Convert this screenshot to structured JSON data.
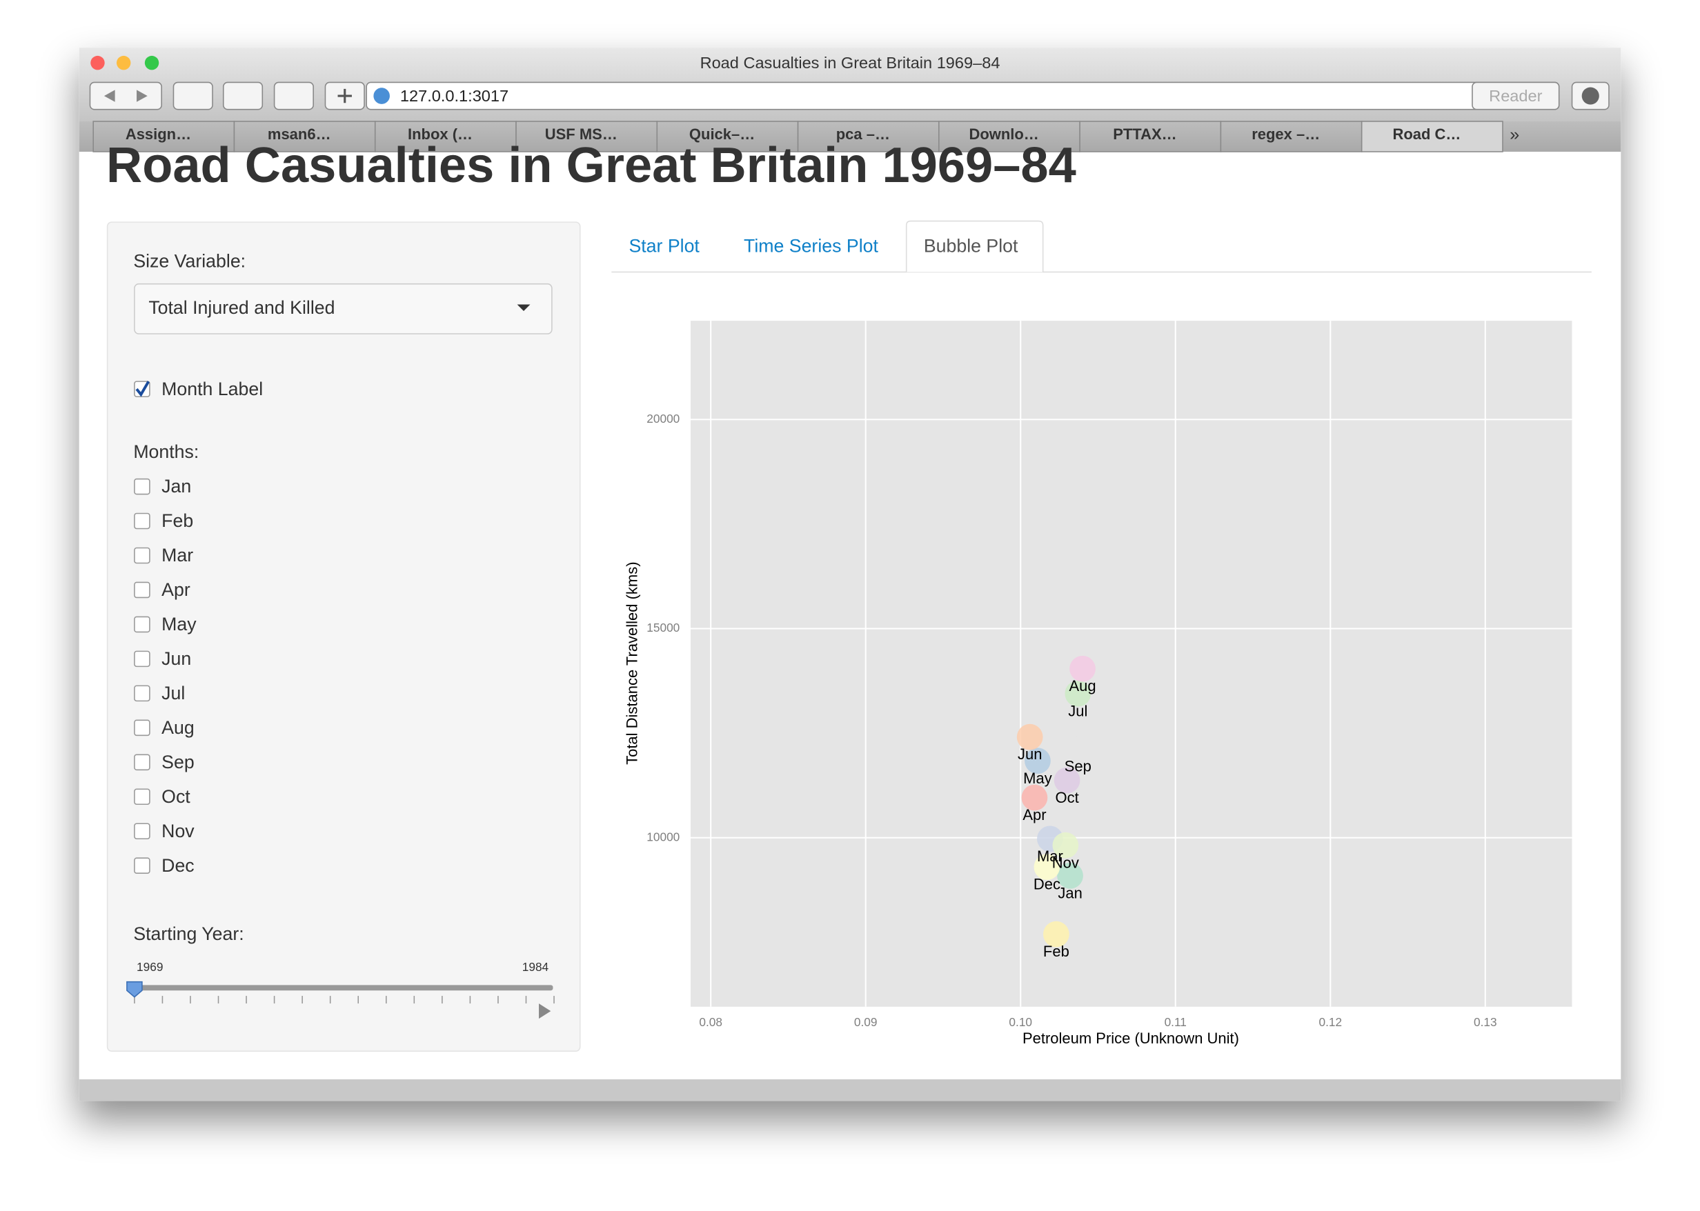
{
  "window": {
    "title": "Road Casualties in Great Britain 1969–84",
    "url": "127.0.0.1:3017",
    "reader": "Reader",
    "tabs": [
      "Assign…",
      "msan6…",
      "Inbox (…",
      "USF MS…",
      "Quick–…",
      "pca –…",
      "Downlo…",
      "PTTAX…",
      "regex –…",
      "Road C…"
    ]
  },
  "page": {
    "title": "Road Casualties in Great Britain 1969–84",
    "sidebar": {
      "size_label": "Size Variable:",
      "size_value": "Total Injured and Killed",
      "month_label_checkbox": "Month Label",
      "months_label": "Months:",
      "months": [
        "Jan",
        "Feb",
        "Mar",
        "Apr",
        "May",
        "Jun",
        "Jul",
        "Aug",
        "Sep",
        "Oct",
        "Nov",
        "Dec"
      ],
      "year_label": "Starting Year:",
      "year_min": 1969,
      "year_max": 1984
    },
    "tabs": [
      "Star Plot",
      "Time Series Plot",
      "Bubble Plot"
    ]
  },
  "chart_data": {
    "type": "scatter",
    "xlabel": "Petroleum Price (Unknown Unit)",
    "ylabel": "Total Distance Travelled (kms)",
    "categories": [
      "Jan",
      "Feb",
      "Mar",
      "Apr",
      "May",
      "Jun",
      "Jul",
      "Aug",
      "Sep",
      "Oct",
      "Nov",
      "Dec"
    ],
    "x": [
      0.1032,
      0.1023,
      0.1019,
      0.1009,
      0.1011,
      0.1006,
      0.1037,
      0.104,
      0.1037,
      0.103,
      0.1029,
      0.1017
    ],
    "y": [
      9093,
      7694,
      9974,
      10959,
      11839,
      12409,
      13446,
      14041,
      12124,
      11373,
      9819,
      9301
    ],
    "colors": [
      "#b3e2cd",
      "#fff2ae",
      "#cbd5e8",
      "#fbb4ae",
      "#b3cde3",
      "#fdcdac",
      "#ccebc5",
      "#f4cae4",
      "#e5e5e5",
      "#decbe4",
      "#e6f5c9",
      "#ffffcc"
    ],
    "xlim": [
      0.0787,
      0.1356
    ],
    "ylim": [
      5960,
      22360
    ],
    "xticks": [
      0.08,
      0.09,
      {
        "value": 0.1,
        "label": "0.10"
      },
      0.11,
      0.12,
      0.13
    ],
    "yticks": [
      10000,
      15000,
      20000
    ],
    "grid": true
  }
}
